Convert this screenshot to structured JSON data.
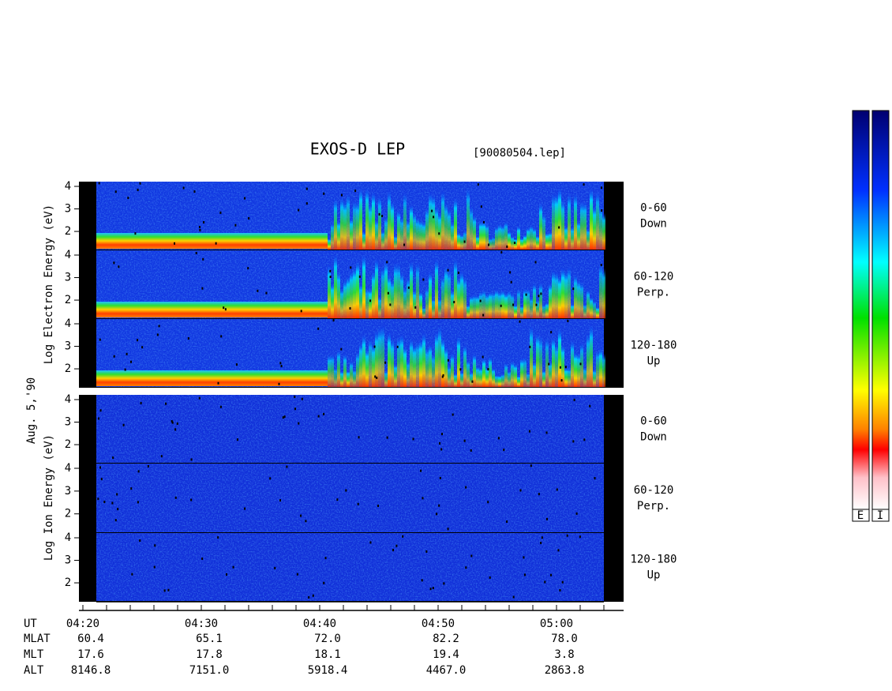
{
  "title": "EXOS-D LEP",
  "file": "[90080504.lep]",
  "date_label": "Aug. 5,'90",
  "electron_label": "Log  Electron  Energy (eV)",
  "ion_label": "Log  Ion  Energy (eV)",
  "energy_ticks": [
    "4",
    "3",
    "2"
  ],
  "pitch_angles": [
    {
      "range": "0-60",
      "dir": "Down"
    },
    {
      "range": "60-120",
      "dir": "Perp."
    },
    {
      "range": "120-180",
      "dir": "Up"
    }
  ],
  "ephemeris": {
    "row_labels": [
      "UT",
      "MLAT",
      "MLT",
      "ALT"
    ],
    "columns": [
      [
        "04:20",
        "60.4",
        "17.6",
        "8146.8"
      ],
      [
        "04:30",
        "65.1",
        "17.8",
        "7151.0"
      ],
      [
        "04:40",
        "72.0",
        "18.1",
        "5918.4"
      ],
      [
        "04:50",
        "82.2",
        "19.4",
        "4467.0"
      ],
      [
        "05:00",
        "78.0",
        "3.8",
        "2863.8"
      ]
    ]
  },
  "colorbar_labels": [
    "E",
    "I"
  ]
}
